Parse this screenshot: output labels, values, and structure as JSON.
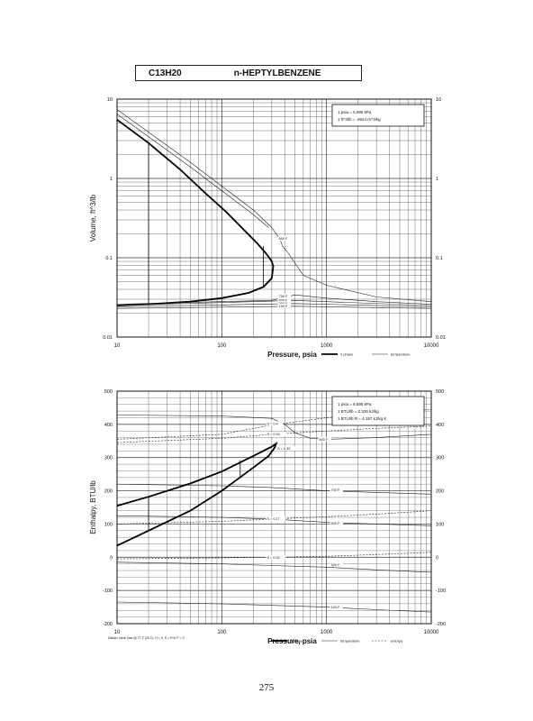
{
  "header": {
    "formula": "C13H20",
    "name": "n-HEPTYLBENZENE"
  },
  "chart_data": [
    {
      "type": "line",
      "xscale": "log",
      "yscale": "log",
      "xlim": [
        10,
        10000
      ],
      "ylim": [
        0.01,
        10
      ],
      "xlabel": "Pressure,  psia",
      "ylabel": "Volume, ft^3/lb",
      "xticks": [
        "10",
        "100",
        "1000",
        "10000"
      ],
      "yticks": [
        "0.01",
        "0.1",
        "1",
        "10"
      ],
      "grid": true,
      "conversion_box": [
        "1 psia  =  6.895 kPa",
        "1 ft^3/lb  =  .0624 m^3/kg"
      ],
      "legend": [
        "2 phase",
        "temperature"
      ],
      "series": [
        {
          "kind": "2phase",
          "points": [
            [
              10,
              5.5
            ],
            [
              20,
              2.8
            ],
            [
              40,
              1.3
            ],
            [
              70,
              0.65
            ],
            [
              110,
              0.38
            ],
            [
              160,
              0.23
            ],
            [
              220,
              0.15
            ],
            [
              270,
              0.11
            ],
            [
              300,
              0.09
            ],
            [
              310,
              0.078
            ],
            [
              300,
              0.055
            ],
            [
              250,
              0.043
            ],
            [
              180,
              0.036
            ],
            [
              100,
              0.031
            ],
            [
              50,
              0.028
            ],
            [
              20,
              0.026
            ],
            [
              10,
              0.025
            ]
          ]
        },
        {
          "kind": "temperature",
          "points": [
            [
              10,
              7.4
            ],
            [
              50,
              1.6
            ],
            [
              100,
              0.8
            ],
            [
              200,
              0.4
            ],
            [
              300,
              0.24
            ],
            [
              360,
              0.17
            ],
            [
              380,
              0.14
            ],
            [
              420,
              0.12
            ],
            [
              600,
              0.06
            ],
            [
              1000,
              0.045
            ],
            [
              3000,
              0.032
            ],
            [
              10000,
              0.028
            ]
          ]
        },
        {
          "kind": "temperature",
          "points": [
            [
              10,
              6.5
            ],
            [
              50,
              1.4
            ],
            [
              100,
              0.7
            ],
            [
              200,
              0.35
            ],
            [
              280,
              0.24
            ]
          ]
        },
        {
          "kind": "temperature",
          "points": [
            [
              10,
              0.026
            ],
            [
              300,
              0.029
            ],
            [
              500,
              0.034
            ],
            [
              1000,
              0.031
            ],
            [
              3000,
              0.028
            ],
            [
              10000,
              0.026
            ]
          ]
        },
        {
          "kind": "temperature",
          "points": [
            [
              10,
              0.025
            ],
            [
              500,
              0.029
            ],
            [
              1000,
              0.028
            ],
            [
              10000,
              0.025
            ]
          ]
        },
        {
          "kind": "temperature",
          "points": [
            [
              10,
              0.024
            ],
            [
              500,
              0.0265
            ],
            [
              10000,
              0.024
            ]
          ]
        },
        {
          "kind": "temperature",
          "points": [
            [
              10,
              0.023
            ],
            [
              500,
              0.0245
            ],
            [
              10000,
              0.023
            ]
          ]
        }
      ],
      "vlines": [
        [
          20,
          0.026,
          2.8
        ],
        [
          250,
          0.043,
          0.14
        ]
      ],
      "labels": [
        {
          "text": "600 F",
          "x": 350,
          "y": 0.17
        },
        {
          "text": "700 F",
          "x": 350,
          "y": 0.032
        },
        {
          "text": "500 F",
          "x": 350,
          "y": 0.0285
        },
        {
          "text": "300 F",
          "x": 350,
          "y": 0.026
        },
        {
          "text": "100 F",
          "x": 350,
          "y": 0.024
        }
      ]
    },
    {
      "type": "line",
      "xscale": "log",
      "yscale": "linear",
      "xlim": [
        10,
        10000
      ],
      "ylim": [
        -200,
        500
      ],
      "xlabel": "Pressure,  psia",
      "ylabel": "Enthalpy, BTU/lb",
      "xticks": [
        "10",
        "100",
        "1000",
        "10000"
      ],
      "yticks": [
        "-200",
        "-100",
        "0",
        "100",
        "200",
        "300",
        "400",
        "500"
      ],
      "grid": true,
      "conversion_box": [
        "1 psia  =  6.895 kPa",
        "1 BTU/lb  =  2.326 kJ/kg",
        "1 BTU/lb R  =  4.187 kJ/kg K"
      ],
      "legend": [
        "2 phase",
        "temperature",
        "entropy"
      ],
      "series": [
        {
          "kind": "2phase",
          "points": [
            [
              10,
              155
            ],
            [
              20,
              182
            ],
            [
              50,
              222
            ],
            [
              100,
              258
            ],
            [
              200,
              305
            ],
            [
              300,
              333
            ],
            [
              330,
              342
            ],
            [
              320,
              330
            ],
            [
              280,
              305
            ],
            [
              200,
              270
            ],
            [
              100,
              200
            ],
            [
              50,
              140
            ],
            [
              20,
              80
            ],
            [
              10,
              35
            ]
          ]
        },
        {
          "kind": "temperature",
          "points": [
            [
              10,
              428
            ],
            [
              100,
              425
            ],
            [
              300,
              418
            ],
            [
              400,
              400
            ],
            [
              500,
              375
            ],
            [
              700,
              358
            ],
            [
              1000,
              355
            ],
            [
              3000,
              360
            ],
            [
              10000,
              370
            ]
          ]
        },
        {
          "kind": "temperature",
          "points": [
            [
              10,
              220
            ],
            [
              100,
              215
            ],
            [
              300,
              210
            ],
            [
              1000,
              200
            ],
            [
              3000,
              195
            ],
            [
              10000,
              190
            ]
          ]
        },
        {
          "kind": "temperature",
          "points": [
            [
              10,
              125
            ],
            [
              100,
              120
            ],
            [
              300,
              115
            ],
            [
              1000,
              105
            ],
            [
              3000,
              100
            ],
            [
              10000,
              95
            ]
          ]
        },
        {
          "kind": "temperature",
          "points": [
            [
              10,
              -15
            ],
            [
              100,
              -20
            ],
            [
              300,
              -25
            ],
            [
              1000,
              -30
            ],
            [
              3000,
              -38
            ],
            [
              10000,
              -45
            ]
          ]
        },
        {
          "kind": "temperature",
          "points": [
            [
              10,
              -135
            ],
            [
              100,
              -140
            ],
            [
              300,
              -145
            ],
            [
              1000,
              -150
            ],
            [
              3000,
              -158
            ],
            [
              10000,
              -165
            ]
          ]
        },
        {
          "kind": "entropy",
          "points": [
            [
              10,
              355
            ],
            [
              100,
              370
            ],
            [
              300,
              398
            ],
            [
              1000,
              420
            ],
            [
              3000,
              435
            ],
            [
              10000,
              445
            ]
          ]
        },
        {
          "kind": "entropy",
          "points": [
            [
              10,
              345
            ],
            [
              100,
              358
            ],
            [
              300,
              370
            ],
            [
              1000,
              380
            ],
            [
              3000,
              388
            ],
            [
              10000,
              395
            ]
          ]
        },
        {
          "kind": "entropy",
          "points": [
            [
              10,
              100
            ],
            [
              100,
              108
            ],
            [
              300,
              115
            ],
            [
              1000,
              122
            ],
            [
              3000,
              130
            ],
            [
              10000,
              140
            ]
          ]
        },
        {
          "kind": "entropy",
          "points": [
            [
              10,
              -5
            ],
            [
              100,
              -2
            ],
            [
              300,
              0
            ],
            [
              1000,
              3
            ],
            [
              3000,
              8
            ],
            [
              10000,
              15
            ]
          ]
        }
      ],
      "vlines": [
        [
          20,
          80,
          182
        ],
        [
          150,
          240,
          292
        ]
      ],
      "labels": [
        {
          "text": "S = 0.4",
          "x": 270,
          "y": 400
        },
        {
          "text": "S = 0.34",
          "x": 270,
          "y": 368
        },
        {
          "text": "S = 0.30",
          "x": 340,
          "y": 325
        },
        {
          "text": "700 F",
          "x": 1100,
          "y": 200
        },
        {
          "text": "S = 0.17",
          "x": 270,
          "y": 113
        },
        {
          "text": "500 F",
          "x": 1100,
          "y": 100
        },
        {
          "text": "300 F",
          "x": 1100,
          "y": -25
        },
        {
          "text": "S = 0.02",
          "x": 270,
          "y": -3
        },
        {
          "text": "100 F",
          "x": 1100,
          "y": -152
        },
        {
          "text": "600 F",
          "x": 850,
          "y": 352
        }
      ]
    }
  ],
  "footnote": "Datum: Ideal Gas @ 77 F (25 C), H = 0, S = R ln P = 0",
  "page_number": "275"
}
